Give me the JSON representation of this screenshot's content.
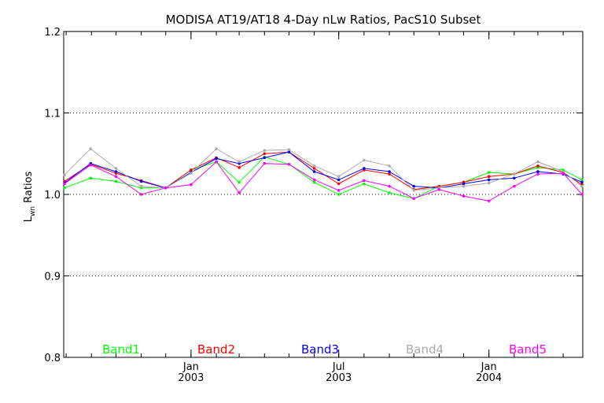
{
  "chart_data": {
    "type": "line",
    "title": "MODISA AT19/AT18 4-Day nLw Ratios, PacS10 Subset",
    "ylabel_main": "L",
    "ylabel_sub": "wn",
    "ylabel_rest": " Ratios",
    "ylim": [
      0.8,
      1.2
    ],
    "y_ticks": [
      "0.8",
      "0.9",
      "1.0",
      "1.1",
      "1.2"
    ],
    "y_gridlines": [
      0.9,
      1.0,
      1.1
    ],
    "grid": "dotted horizontal",
    "xlim": [
      "2002-07-29",
      "2004-04-25"
    ],
    "x_ticks": [
      {
        "date": "2003-01-01",
        "line1": "Jan",
        "line2": "2003"
      },
      {
        "date": "2003-07-01",
        "line1": "Jul",
        "line2": "2003"
      },
      {
        "date": "2004-01-01",
        "line1": "Jan",
        "line2": "2004"
      }
    ],
    "x": [
      "2002-07-30",
      "2002-08-31",
      "2002-10-01",
      "2002-11-01",
      "2002-12-01",
      "2003-01-01",
      "2003-02-01",
      "2003-03-01",
      "2003-04-01",
      "2003-05-01",
      "2003-06-01",
      "2003-07-01",
      "2003-08-01",
      "2003-09-01",
      "2003-10-01",
      "2003-11-01",
      "2003-12-01",
      "2004-01-01",
      "2004-02-01",
      "2004-03-01",
      "2004-04-01",
      "2004-04-24"
    ],
    "legend_placement": "bottom",
    "series": [
      {
        "name": "Band1",
        "color": "#00ff00",
        "values": [
          1.008,
          1.02,
          1.016,
          1.008,
          1.008,
          1.03,
          1.04,
          1.015,
          1.046,
          1.037,
          1.015,
          1.0,
          1.013,
          1.002,
          0.995,
          1.01,
          1.015,
          1.027,
          1.025,
          1.033,
          1.03,
          1.018
        ]
      },
      {
        "name": "Band2",
        "color": "#ff0000",
        "values": [
          1.016,
          1.037,
          1.026,
          1.017,
          1.008,
          1.03,
          1.045,
          1.033,
          1.05,
          1.052,
          1.032,
          1.013,
          1.03,
          1.025,
          1.006,
          1.01,
          1.015,
          1.022,
          1.025,
          1.035,
          1.027,
          1.012
        ]
      },
      {
        "name": "Band3",
        "color": "#0000ff",
        "values": [
          1.014,
          1.038,
          1.028,
          1.016,
          1.008,
          1.027,
          1.044,
          1.038,
          1.045,
          1.052,
          1.028,
          1.018,
          1.032,
          1.028,
          1.01,
          1.008,
          1.013,
          1.018,
          1.02,
          1.028,
          1.025,
          1.015
        ]
      },
      {
        "name": "Band4",
        "color": "#aaaaaa",
        "values": [
          1.024,
          1.056,
          1.032,
          1.01,
          1.008,
          1.026,
          1.056,
          1.04,
          1.054,
          1.055,
          1.035,
          1.022,
          1.042,
          1.035,
          1.005,
          1.008,
          1.01,
          1.014,
          1.025,
          1.04,
          1.028,
          1.01
        ]
      },
      {
        "name": "Band5",
        "color": "#ff00ff",
        "values": [
          1.013,
          1.036,
          1.022,
          1.0,
          1.008,
          1.012,
          1.04,
          1.002,
          1.038,
          1.037,
          1.018,
          1.005,
          1.017,
          1.01,
          0.995,
          1.006,
          0.998,
          0.992,
          1.01,
          1.025,
          1.026,
          1.0
        ]
      }
    ]
  }
}
